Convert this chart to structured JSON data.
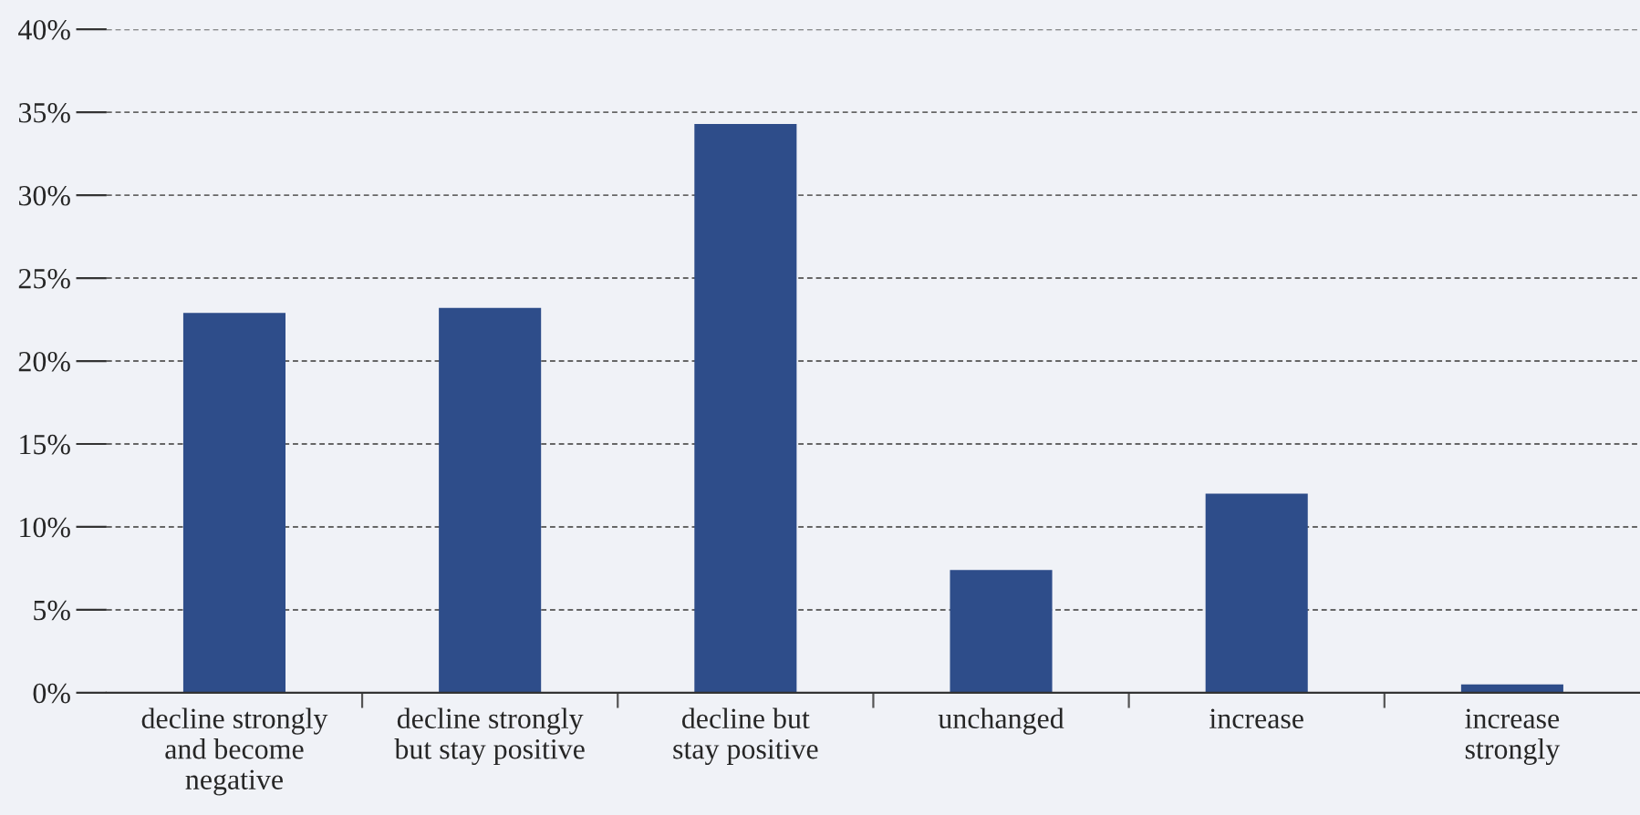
{
  "chart_data": {
    "type": "bar",
    "categories": [
      "decline strongly\nand become\nnegative",
      "decline strongly\nbut stay positive",
      "decline but\nstay positive",
      "unchanged",
      "increase",
      "increase\nstrongly"
    ],
    "values": [
      22.9,
      23.2,
      34.3,
      7.4,
      12.0,
      0.5
    ],
    "color": "#2e4d8a",
    "ylim": [
      0,
      40
    ],
    "yticks": [
      {
        "value": 0,
        "label": "0%"
      },
      {
        "value": 5,
        "label": "5%"
      },
      {
        "value": 10,
        "label": "10%"
      },
      {
        "value": 15,
        "label": "15%"
      },
      {
        "value": 20,
        "label": "20%"
      },
      {
        "value": 25,
        "label": "25%"
      },
      {
        "value": 30,
        "label": "30%"
      },
      {
        "value": 35,
        "label": "35%"
      },
      {
        "value": 40,
        "label": "40%"
      }
    ],
    "grid": "y"
  }
}
